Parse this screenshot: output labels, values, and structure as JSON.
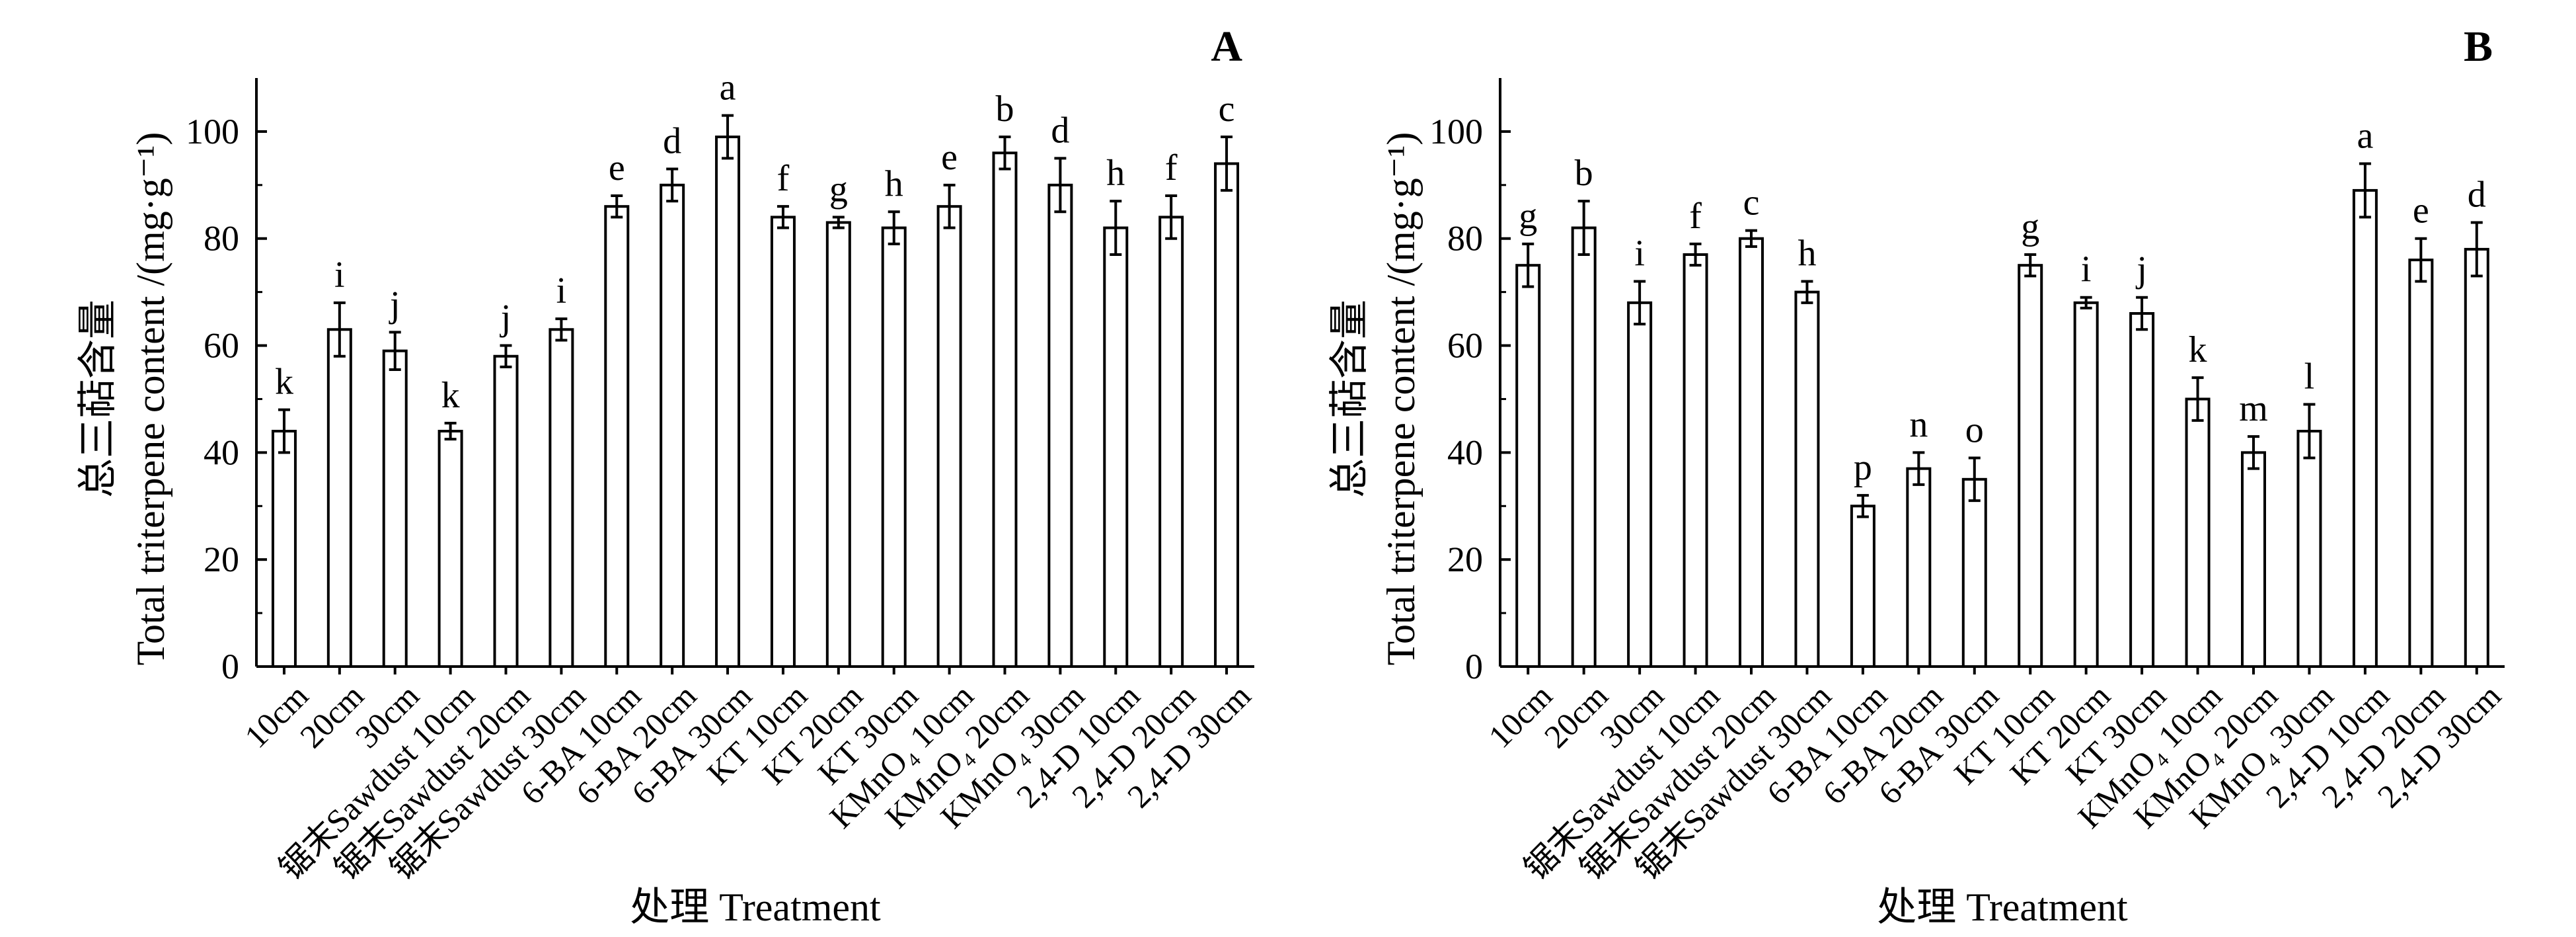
{
  "chart_data": [
    {
      "type": "bar",
      "panel_label": "A",
      "ylabel_cn": "总三萜含量",
      "ylabel_en": "Total triterpene content /(mg·g⁻¹)",
      "xlabel": "处理 Treatment",
      "ylim": [
        0,
        110
      ],
      "yticks": [
        0,
        20,
        40,
        60,
        80,
        100
      ],
      "categories": [
        "10cm",
        "20cm",
        "30cm",
        "锯末Sawdust 10cm",
        "锯末Sawdust 20cm",
        "锯末Sawdust 30cm",
        "6-BA 10cm",
        "6-BA 20cm",
        "6-BA 30cm",
        "KT 10cm",
        "KT 20cm",
        "KT 30cm",
        "KMnO₄ 10cm",
        "KMnO₄ 20cm",
        "KMnO₄ 30cm",
        "2,4-D 10cm",
        "2,4-D 20cm",
        "2,4-D 30cm"
      ],
      "values": [
        44,
        63,
        59,
        44,
        58,
        63,
        86,
        90,
        99,
        84,
        83,
        82,
        86,
        96,
        90,
        82,
        84,
        94
      ],
      "errors": [
        4,
        5,
        3.5,
        1.5,
        2,
        2,
        2,
        3,
        4,
        2,
        1,
        3,
        4,
        3,
        5,
        5,
        4,
        5
      ],
      "significance": [
        "k",
        "i",
        "j",
        "k",
        "j",
        "i",
        "e",
        "d",
        "a",
        "f",
        "g",
        "h",
        "e",
        "b",
        "d",
        "h",
        "f",
        "c"
      ]
    },
    {
      "type": "bar",
      "panel_label": "B",
      "ylabel_cn": "总三萜含量",
      "ylabel_en": "Total triterpene content /(mg·g⁻¹)",
      "xlabel": "处理 Treatment",
      "ylim": [
        0,
        110
      ],
      "yticks": [
        0,
        20,
        40,
        60,
        80,
        100
      ],
      "categories": [
        "10cm",
        "20cm",
        "30cm",
        "锯末Sawdust 10cm",
        "锯末Sawdust 20cm",
        "锯末Sawdust 30cm",
        "6-BA 10cm",
        "6-BA 20cm",
        "6-BA 30cm",
        "KT 10cm",
        "KT 20cm",
        "KT 30cm",
        "KMnO₄ 10cm",
        "KMnO₄ 20cm",
        "KMnO₄ 30cm",
        "2,4-D 10cm",
        "2,4-D 20cm",
        "2,4-D 30cm"
      ],
      "values": [
        75,
        82,
        68,
        77,
        80,
        70,
        30,
        37,
        35,
        75,
        68,
        66,
        50,
        40,
        44,
        89,
        76,
        78
      ],
      "errors": [
        4,
        5,
        4,
        2,
        1.5,
        2,
        2,
        3,
        4,
        2,
        1,
        3,
        4,
        3,
        5,
        5,
        4,
        5
      ],
      "significance": [
        "g",
        "b",
        "i",
        "f",
        "c",
        "h",
        "p",
        "n",
        "o",
        "g",
        "i",
        "j",
        "k",
        "m",
        "l",
        "a",
        "e",
        "d"
      ]
    }
  ]
}
